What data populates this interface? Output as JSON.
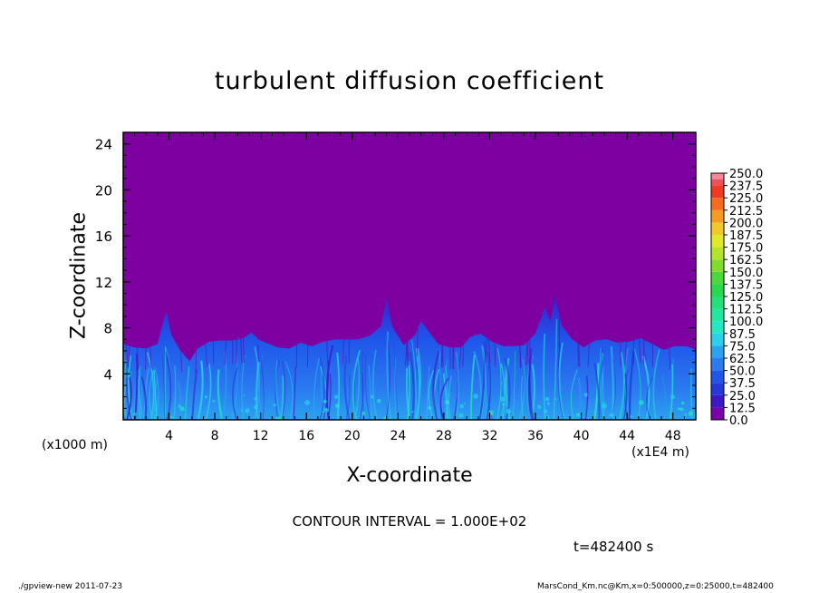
{
  "chart_data": {
    "type": "heatmap",
    "title": "turbulent diffusion coefficient",
    "xlabel": "X-coordinate",
    "ylabel": "Z-coordinate",
    "x_unit_left": "(x1000 m)",
    "x_unit_right": "(x1E4 m)",
    "xlim": [
      0,
      50
    ],
    "ylim": [
      0,
      25
    ],
    "x_ticks": [
      4,
      8,
      12,
      16,
      20,
      24,
      28,
      32,
      36,
      40,
      44,
      48
    ],
    "y_ticks": [
      4,
      8,
      12,
      16,
      20,
      24
    ],
    "x_tick_labels": [
      "4",
      "8",
      "12",
      "16",
      "20",
      "24",
      "28",
      "32",
      "36",
      "40",
      "44",
      "48"
    ],
    "y_tick_labels": [
      "4",
      "8",
      "12",
      "16",
      "20",
      "24"
    ],
    "colorbar_levels": [
      "0.0",
      "12.5",
      "25.0",
      "37.5",
      "50.0",
      "62.5",
      "75.0",
      "87.5",
      "100.0",
      "112.5",
      "125.0",
      "137.5",
      "150.0",
      "162.5",
      "175.0",
      "187.5",
      "200.0",
      "212.5",
      "225.0",
      "237.5",
      "250.0"
    ],
    "colorbar_colors": [
      "#7a00a8",
      "#3c18c8",
      "#2438dc",
      "#1f55ea",
      "#2a7af0",
      "#2aa2f0",
      "#2ad0ec",
      "#22e8c4",
      "#20e8a0",
      "#22e07a",
      "#2ad84e",
      "#4cd83a",
      "#82dc2e",
      "#b4e42a",
      "#e0e82a",
      "#f0c82a",
      "#f89a22",
      "#f86a1e",
      "#f03a22",
      "#f05058",
      "#f08a9a"
    ],
    "background_color": "#7d00a0",
    "turbulent_layer_top_profile": [
      [
        0,
        6.6
      ],
      [
        1,
        6.3
      ],
      [
        2,
        6.2
      ],
      [
        3,
        6.6
      ],
      [
        3.5,
        8.6
      ],
      [
        3.8,
        9.4
      ],
      [
        4.2,
        7.4
      ],
      [
        5,
        6.0
      ],
      [
        5.8,
        5.1
      ],
      [
        6.5,
        6.2
      ],
      [
        7.5,
        6.8
      ],
      [
        8.5,
        6.9
      ],
      [
        9.5,
        6.9
      ],
      [
        10.5,
        7.1
      ],
      [
        11.2,
        7.6
      ],
      [
        11.8,
        7.0
      ],
      [
        12.5,
        6.7
      ],
      [
        13.5,
        6.3
      ],
      [
        14.5,
        6.2
      ],
      [
        15.5,
        6.7
      ],
      [
        16.5,
        6.4
      ],
      [
        17.5,
        6.8
      ],
      [
        18.5,
        7.0
      ],
      [
        19.5,
        7.0
      ],
      [
        20.5,
        7.0
      ],
      [
        21.5,
        7.3
      ],
      [
        22.5,
        8.1
      ],
      [
        23,
        10.5
      ],
      [
        23.5,
        8.1
      ],
      [
        24.5,
        6.5
      ],
      [
        25.5,
        7.4
      ],
      [
        26,
        8.6
      ],
      [
        26.6,
        7.8
      ],
      [
        27.5,
        6.6
      ],
      [
        28.5,
        6.3
      ],
      [
        29.5,
        6.3
      ],
      [
        30.3,
        7.2
      ],
      [
        31.2,
        7.5
      ],
      [
        32.2,
        6.8
      ],
      [
        33.2,
        6.4
      ],
      [
        34.2,
        6.4
      ],
      [
        35,
        6.5
      ],
      [
        36,
        7.5
      ],
      [
        36.8,
        9.8
      ],
      [
        37.3,
        8.6
      ],
      [
        37.7,
        10.8
      ],
      [
        38.3,
        8.2
      ],
      [
        39.2,
        7.0
      ],
      [
        40.2,
        6.3
      ],
      [
        41.2,
        6.9
      ],
      [
        42.2,
        7.0
      ],
      [
        43.2,
        6.7
      ],
      [
        44.2,
        6.8
      ],
      [
        45.2,
        7.1
      ],
      [
        46.2,
        6.6
      ],
      [
        47.2,
        6.1
      ],
      [
        48.2,
        6.4
      ],
      [
        49.2,
        6.4
      ],
      [
        50,
        6.1
      ]
    ]
  },
  "contour_interval": "CONTOUR INTERVAL = 1.000E+02",
  "time_label": "t=482400 s",
  "footer_left": "./gpview-new  2011-07-23",
  "footer_right": "MarsCond_Km.nc@Km,x=0:500000,z=0:25000,t=482400"
}
